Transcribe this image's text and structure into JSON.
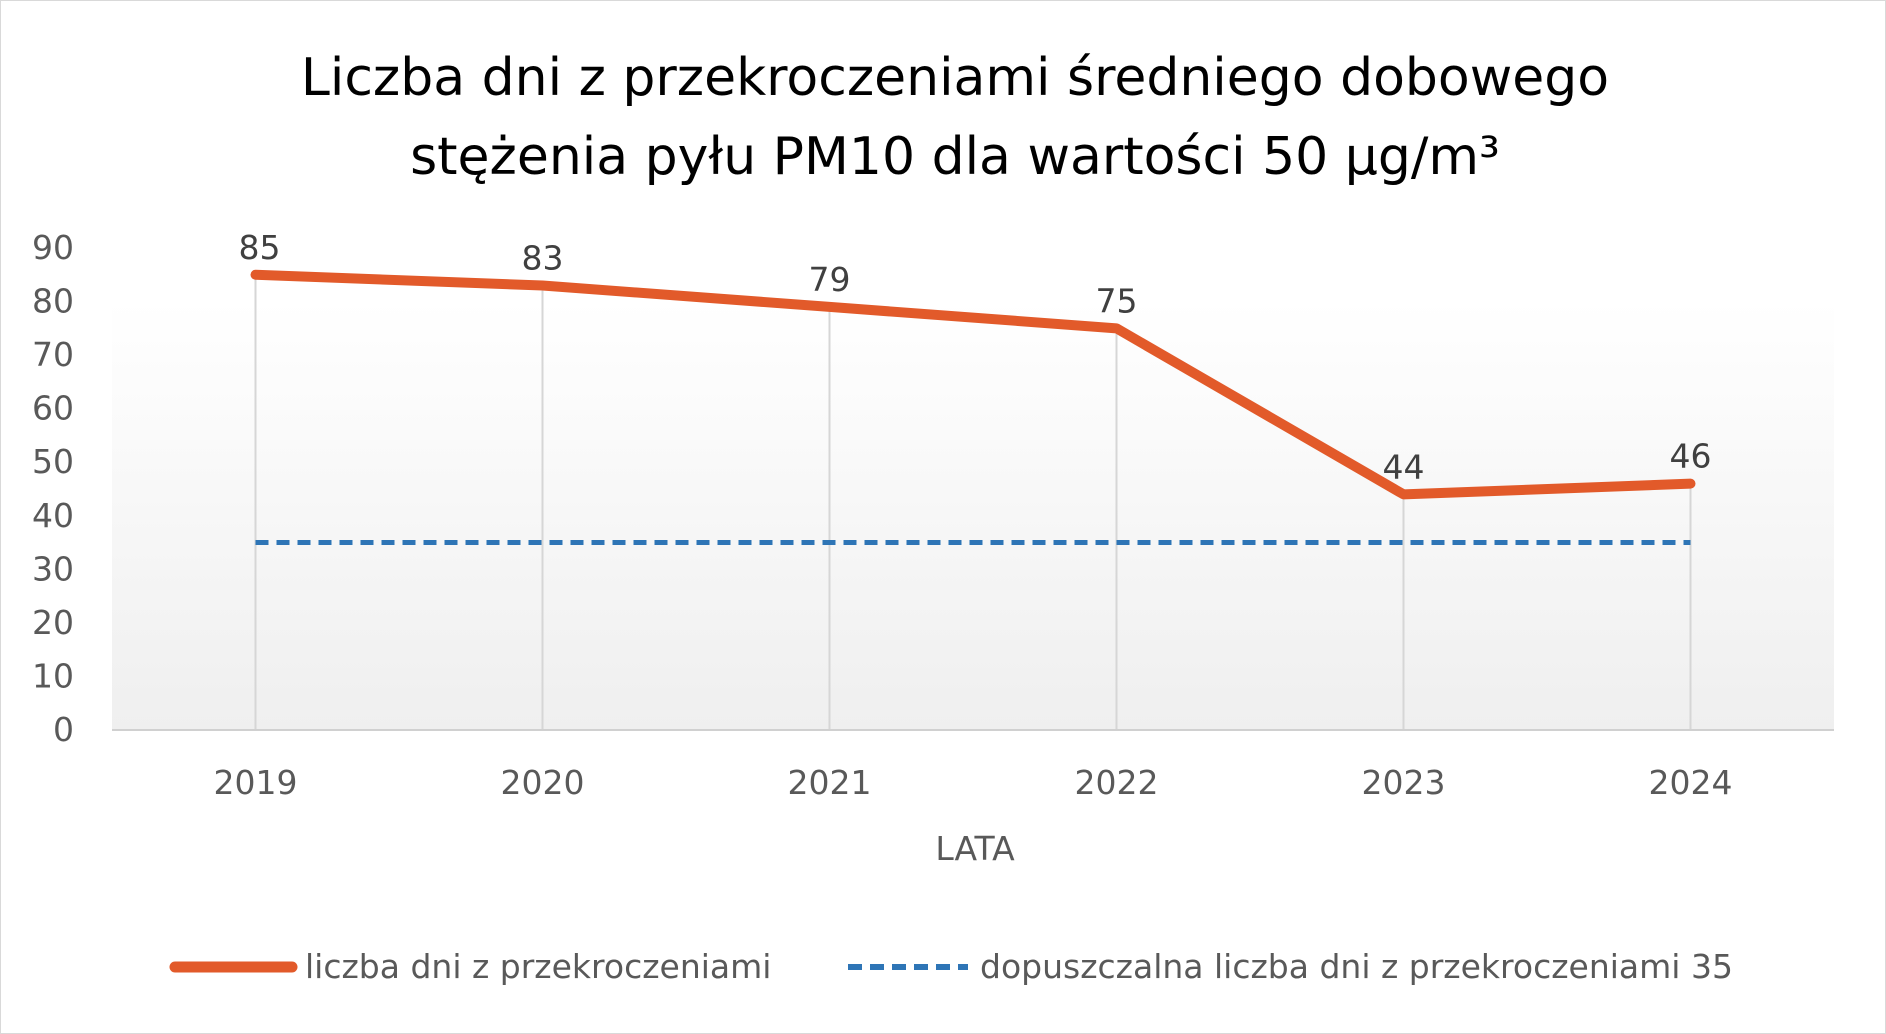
{
  "chart_data": {
    "type": "line",
    "title_line1": "Liczba dni z przekroczeniami średniego dobowego",
    "title_line2": "stężenia pyłu PM10 dla wartości 50 µg/m³",
    "categories": [
      "2019",
      "2020",
      "2021",
      "2022",
      "2023",
      "2024"
    ],
    "series": [
      {
        "name": "liczba dni z przekroczeniami",
        "values": [
          85,
          83,
          79,
          75,
          44,
          46
        ],
        "color": "#E25A2A",
        "style": "solid"
      },
      {
        "name": "dopuszczalna liczba dni z przekroczeniami 35",
        "values": [
          35,
          35,
          35,
          35,
          35,
          35
        ],
        "color": "#2E75B6",
        "style": "dashed"
      }
    ],
    "data_labels": [
      "85",
      "83",
      "79",
      "75",
      "44",
      "46"
    ],
    "y_ticks": [
      "0",
      "10",
      "20",
      "30",
      "40",
      "50",
      "60",
      "70",
      "80",
      "90"
    ],
    "ylim": [
      0,
      90
    ],
    "xlabel": "LATA",
    "ylabel": "",
    "legend_position": "bottom"
  }
}
